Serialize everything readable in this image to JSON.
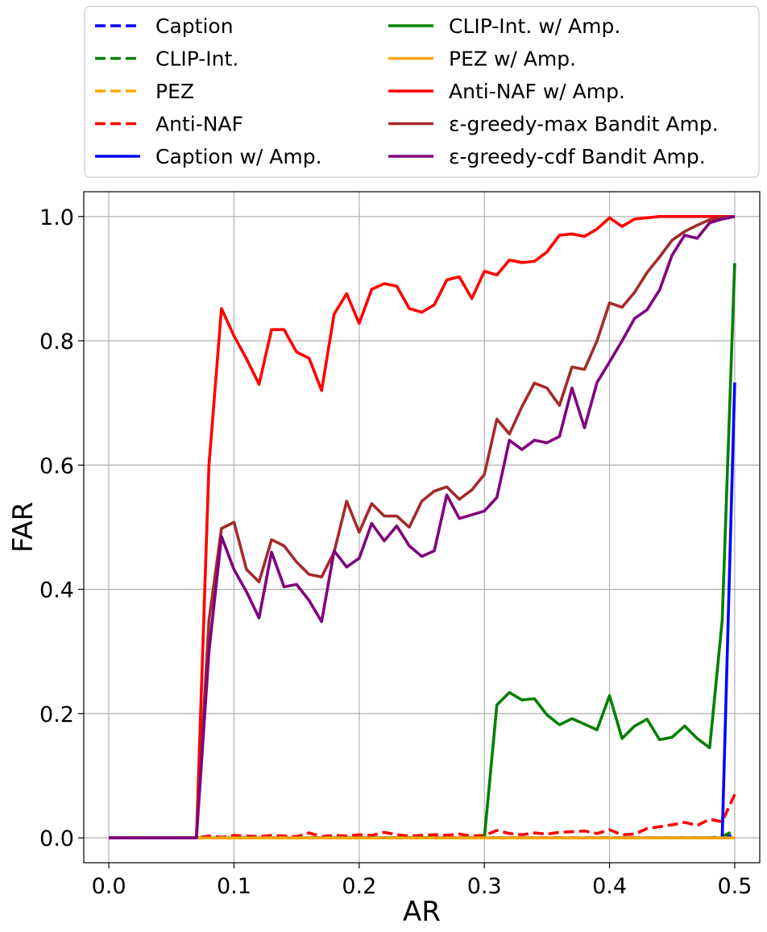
{
  "chart_data": {
    "type": "line",
    "xlabel": "AR",
    "ylabel": "FAR",
    "xlim": [
      -0.02,
      0.52
    ],
    "ylim": [
      -0.04,
      1.04
    ],
    "xticks": [
      0.0,
      0.1,
      0.2,
      0.3,
      0.4,
      0.5
    ],
    "xtick_labels": [
      "0.0",
      "0.1",
      "0.2",
      "0.3",
      "0.4",
      "0.5"
    ],
    "yticks": [
      0.0,
      0.2,
      0.4,
      0.6,
      0.8,
      1.0
    ],
    "ytick_labels": [
      "0.0",
      "0.2",
      "0.4",
      "0.6",
      "0.8",
      "1.0"
    ],
    "grid": true,
    "legend_position": "top, above plot, 2 columns",
    "x": [
      0.0,
      0.01,
      0.02,
      0.03,
      0.04,
      0.05,
      0.06,
      0.07,
      0.08,
      0.09,
      0.1,
      0.11,
      0.12,
      0.13,
      0.14,
      0.15,
      0.16,
      0.17,
      0.18,
      0.19,
      0.2,
      0.21,
      0.22,
      0.23,
      0.24,
      0.25,
      0.26,
      0.27,
      0.28,
      0.29,
      0.3,
      0.31,
      0.32,
      0.33,
      0.34,
      0.35,
      0.36,
      0.37,
      0.38,
      0.39,
      0.4,
      0.41,
      0.42,
      0.43,
      0.44,
      0.45,
      0.46,
      0.47,
      0.48,
      0.49,
      0.5
    ],
    "series": [
      {
        "name": "Caption",
        "color": "#0000ff",
        "dashed": true,
        "values": [
          0,
          0,
          0,
          0,
          0,
          0,
          0,
          0,
          0,
          0,
          0,
          0,
          0,
          0,
          0,
          0,
          0,
          0,
          0,
          0,
          0,
          0,
          0,
          0,
          0,
          0,
          0,
          0,
          0,
          0,
          0,
          0,
          0,
          0,
          0,
          0,
          0,
          0,
          0,
          0,
          0,
          0,
          0,
          0,
          0,
          0,
          0,
          0,
          0,
          0,
          0.005
        ]
      },
      {
        "name": "CLIP-Int.",
        "color": "#008000",
        "dashed": true,
        "values": [
          0,
          0,
          0,
          0,
          0,
          0,
          0,
          0,
          0,
          0,
          0,
          0,
          0,
          0,
          0,
          0,
          0,
          0,
          0,
          0,
          0,
          0,
          0,
          0,
          0,
          0,
          0,
          0,
          0,
          0,
          0,
          0,
          0,
          0,
          0,
          0,
          0,
          0,
          0,
          0,
          0,
          0,
          0,
          0,
          0,
          0,
          0,
          0,
          0,
          0.002,
          0.012
        ]
      },
      {
        "name": "PEZ",
        "color": "#ffa500",
        "dashed": true,
        "values": [
          0,
          0,
          0,
          0,
          0,
          0,
          0,
          0,
          0,
          0,
          0,
          0,
          0,
          0,
          0,
          0,
          0,
          0,
          0,
          0,
          0,
          0,
          0,
          0,
          0,
          0,
          0,
          0,
          0,
          0,
          0,
          0,
          0,
          0,
          0,
          0,
          0,
          0,
          0,
          0,
          0,
          0,
          0,
          0,
          0,
          0,
          0,
          0,
          0,
          0,
          0
        ]
      },
      {
        "name": "Anti-NAF",
        "color": "#ff0000",
        "dashed": true,
        "values": [
          0,
          0,
          0,
          0,
          0,
          0,
          0,
          0,
          0.003,
          0.001,
          0.004,
          0.003,
          0.002,
          0.004,
          0.003,
          0.002,
          0.008,
          0.002,
          0.004,
          0.003,
          0.005,
          0.004,
          0.009,
          0.005,
          0.003,
          0.004,
          0.005,
          0.004,
          0.006,
          0.003,
          0.004,
          0.012,
          0.007,
          0.005,
          0.008,
          0.006,
          0.009,
          0.01,
          0.011,
          0.007,
          0.013,
          0.005,
          0.006,
          0.015,
          0.018,
          0.021,
          0.025,
          0.02,
          0.03,
          0.026,
          0.07
        ]
      },
      {
        "name": "Caption w/ Amp.",
        "color": "#0000ff",
        "dashed": false,
        "values": [
          0,
          0,
          0,
          0,
          0,
          0,
          0,
          0,
          0,
          0,
          0,
          0,
          0,
          0,
          0,
          0,
          0,
          0,
          0,
          0,
          0,
          0,
          0,
          0,
          0,
          0,
          0,
          0,
          0,
          0,
          0,
          0,
          0,
          0,
          0,
          0,
          0,
          0,
          0,
          0,
          0,
          0,
          0,
          0,
          0,
          0,
          0,
          0,
          0,
          0,
          0.733
        ]
      },
      {
        "name": "CLIP-Int. w/ Amp.",
        "color": "#008000",
        "dashed": false,
        "values": [
          0,
          0,
          0,
          0,
          0,
          0,
          0,
          0,
          0,
          0,
          0,
          0,
          0,
          0,
          0,
          0,
          0,
          0,
          0,
          0,
          0,
          0,
          0,
          0,
          0,
          0,
          0,
          0,
          0,
          0,
          0,
          0.214,
          0.234,
          0.222,
          0.224,
          0.198,
          0.182,
          0.192,
          0.183,
          0.174,
          0.229,
          0.16,
          0.18,
          0.191,
          0.158,
          0.162,
          0.18,
          0.16,
          0.145,
          0.35,
          0.925
        ]
      },
      {
        "name": "PEZ w/ Amp.",
        "color": "#ffa500",
        "dashed": false,
        "values": [
          0,
          0,
          0,
          0,
          0,
          0,
          0,
          0,
          0,
          0,
          0,
          0,
          0,
          0,
          0,
          0,
          0,
          0,
          0,
          0,
          0,
          0,
          0,
          0,
          0,
          0,
          0,
          0,
          0,
          0,
          0,
          0,
          0,
          0,
          0,
          0,
          0,
          0,
          0,
          0,
          0,
          0,
          0,
          0,
          0,
          0,
          0,
          0,
          0,
          0,
          0
        ]
      },
      {
        "name": "Anti-NAF w/ Amp.",
        "color": "#ff0000",
        "dashed": false,
        "values": [
          0,
          0,
          0,
          0,
          0,
          0,
          0,
          0,
          0.6,
          0.852,
          0.808,
          0.771,
          0.73,
          0.818,
          0.818,
          0.782,
          0.772,
          0.72,
          0.843,
          0.876,
          0.828,
          0.883,
          0.892,
          0.888,
          0.852,
          0.846,
          0.858,
          0.898,
          0.903,
          0.868,
          0.912,
          0.906,
          0.93,
          0.926,
          0.928,
          0.943,
          0.97,
          0.972,
          0.968,
          0.98,
          0.998,
          0.984,
          0.996,
          0.998,
          1.0,
          1.0,
          1.0,
          1.0,
          1.0,
          1.0,
          1.0
        ]
      },
      {
        "name": "ε-greedy-max Bandit Amp.",
        "color": "#a52a2a",
        "dashed": false,
        "values": [
          0,
          0,
          0,
          0,
          0,
          0,
          0,
          0,
          0.35,
          0.498,
          0.508,
          0.432,
          0.412,
          0.48,
          0.47,
          0.444,
          0.424,
          0.42,
          0.46,
          0.542,
          0.492,
          0.538,
          0.518,
          0.518,
          0.5,
          0.542,
          0.558,
          0.565,
          0.545,
          0.56,
          0.585,
          0.674,
          0.65,
          0.694,
          0.732,
          0.724,
          0.696,
          0.758,
          0.754,
          0.8,
          0.861,
          0.854,
          0.878,
          0.91,
          0.935,
          0.962,
          0.976,
          0.986,
          0.995,
          0.999,
          1.0
        ]
      },
      {
        "name": "ε-greedy-cdf Bandit Amp.",
        "color": "#800080",
        "dashed": false,
        "values": [
          0,
          0,
          0,
          0,
          0,
          0,
          0,
          0,
          0.3,
          0.485,
          0.432,
          0.396,
          0.354,
          0.46,
          0.404,
          0.408,
          0.382,
          0.348,
          0.462,
          0.436,
          0.45,
          0.506,
          0.478,
          0.502,
          0.47,
          0.453,
          0.462,
          0.552,
          0.514,
          0.52,
          0.526,
          0.548,
          0.64,
          0.625,
          0.64,
          0.636,
          0.646,
          0.724,
          0.66,
          0.733,
          0.766,
          0.8,
          0.836,
          0.85,
          0.882,
          0.938,
          0.97,
          0.965,
          0.99,
          0.996,
          1.0
        ]
      }
    ]
  }
}
